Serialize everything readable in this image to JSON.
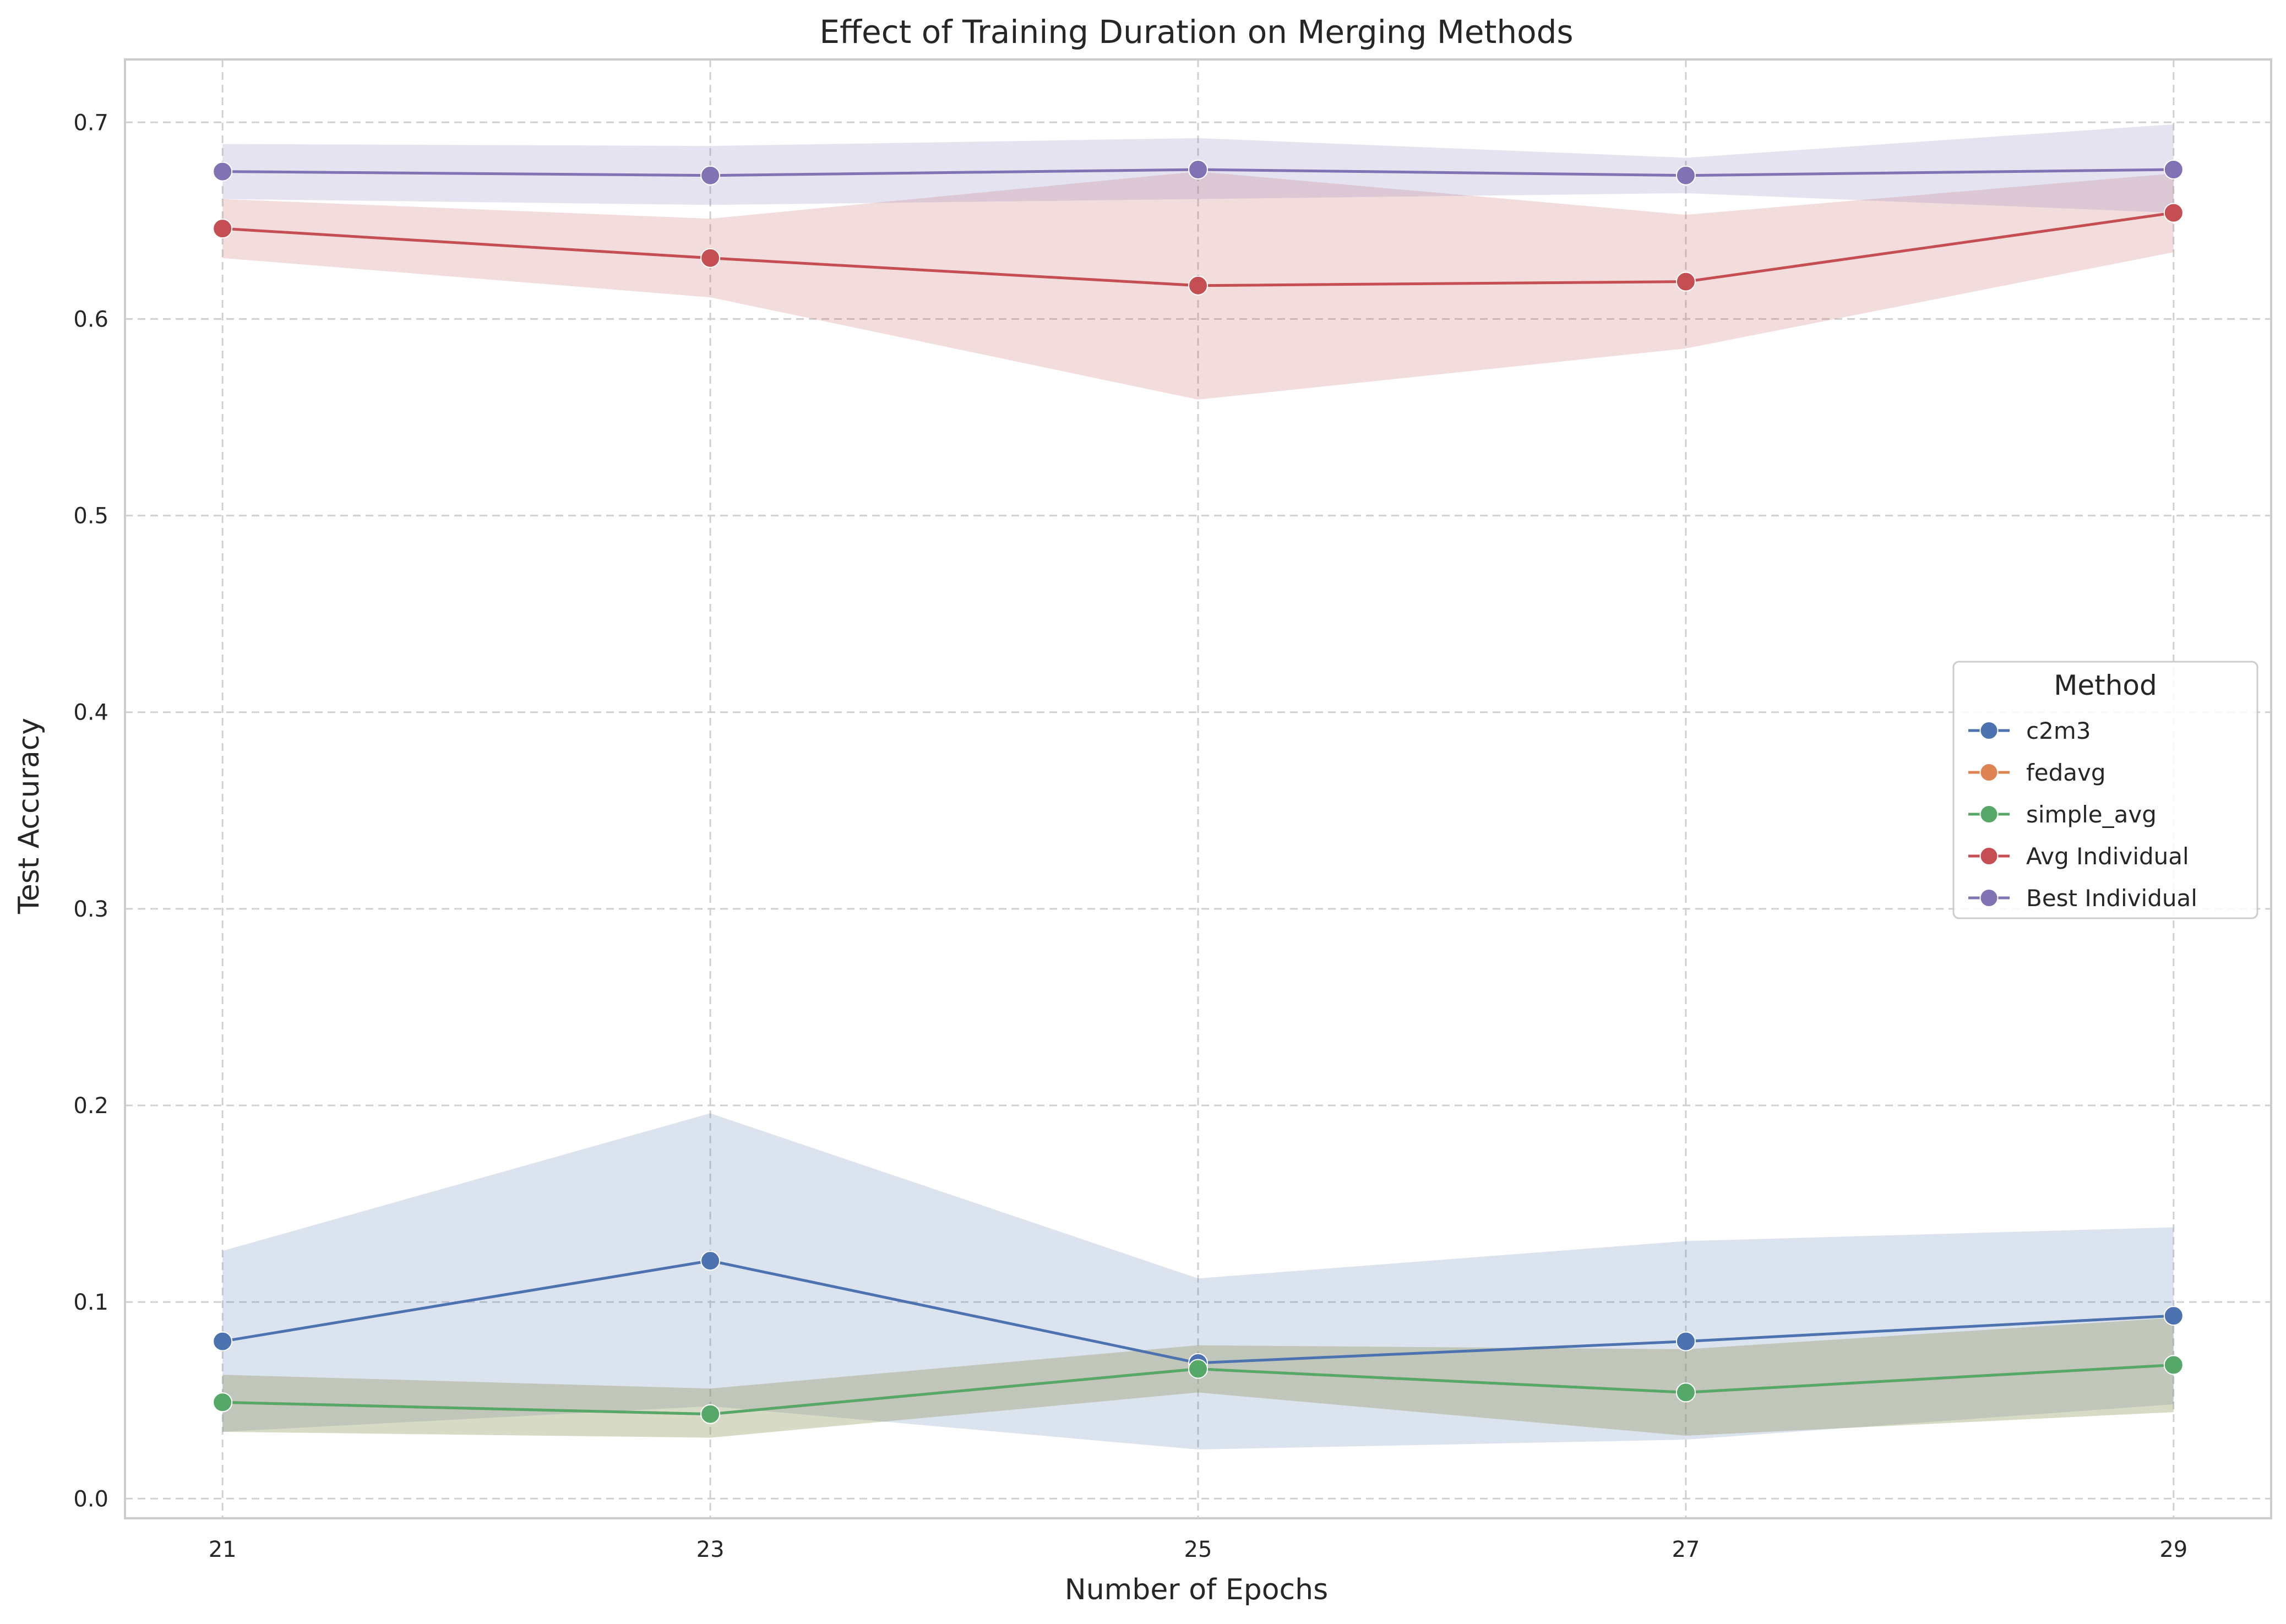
{
  "chart_data": {
    "type": "line",
    "title": "Effect of Training Duration on Merging Methods",
    "xlabel": "Number of Epochs",
    "ylabel": "Test Accuracy",
    "x": [
      21,
      23,
      25,
      27,
      29
    ],
    "x_ticks": [
      "21",
      "23",
      "25",
      "27",
      "29"
    ],
    "xlim": [
      20.6,
      29.4
    ],
    "ylim": [
      -0.01,
      0.732
    ],
    "y_ticks": [
      "0.0",
      "0.1",
      "0.2",
      "0.3",
      "0.4",
      "0.5",
      "0.6",
      "0.7"
    ],
    "grid": true,
    "legend_title": "Method",
    "legend_position": "center-right",
    "series": [
      {
        "name": "c2m3",
        "color": "#4c72b0",
        "values": [
          0.08,
          0.121,
          0.069,
          0.08,
          0.093
        ],
        "lower": [
          0.034,
          0.047,
          0.025,
          0.03,
          0.048
        ],
        "upper": [
          0.126,
          0.196,
          0.112,
          0.131,
          0.138
        ]
      },
      {
        "name": "fedavg",
        "color": "#dd8452",
        "values": [
          0.049,
          0.043,
          0.066,
          0.054,
          0.068
        ],
        "lower": [
          0.034,
          0.031,
          0.054,
          0.032,
          0.044
        ],
        "upper": [
          0.063,
          0.056,
          0.078,
          0.076,
          0.092
        ]
      },
      {
        "name": "simple_avg",
        "color": "#55a868",
        "values": [
          0.049,
          0.043,
          0.066,
          0.054,
          0.068
        ],
        "lower": [
          0.034,
          0.031,
          0.054,
          0.032,
          0.044
        ],
        "upper": [
          0.063,
          0.056,
          0.078,
          0.076,
          0.092
        ]
      },
      {
        "name": "Avg Individual",
        "color": "#c44e52",
        "values": [
          0.646,
          0.631,
          0.617,
          0.619,
          0.654
        ],
        "lower": [
          0.631,
          0.611,
          0.559,
          0.585,
          0.634
        ],
        "upper": [
          0.661,
          0.651,
          0.675,
          0.653,
          0.674
        ]
      },
      {
        "name": "Best Individual",
        "color": "#8172b3",
        "values": [
          0.675,
          0.673,
          0.676,
          0.673,
          0.676
        ],
        "lower": [
          0.661,
          0.658,
          0.661,
          0.664,
          0.654
        ],
        "upper": [
          0.689,
          0.688,
          0.692,
          0.682,
          0.699
        ]
      }
    ]
  }
}
